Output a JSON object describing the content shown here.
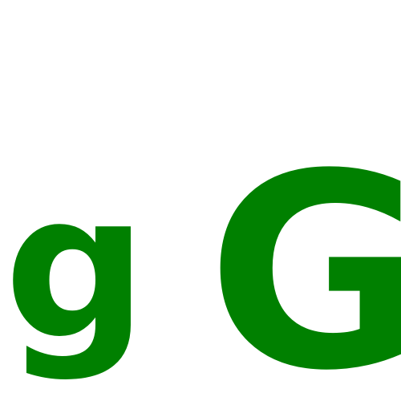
{
  "canvas": {
    "background_color": "#ffffff"
  },
  "glyphs": {
    "lowercase": {
      "text": "g",
      "color": "#008000"
    },
    "uppercase": {
      "text": "G",
      "color": "#008000"
    }
  }
}
